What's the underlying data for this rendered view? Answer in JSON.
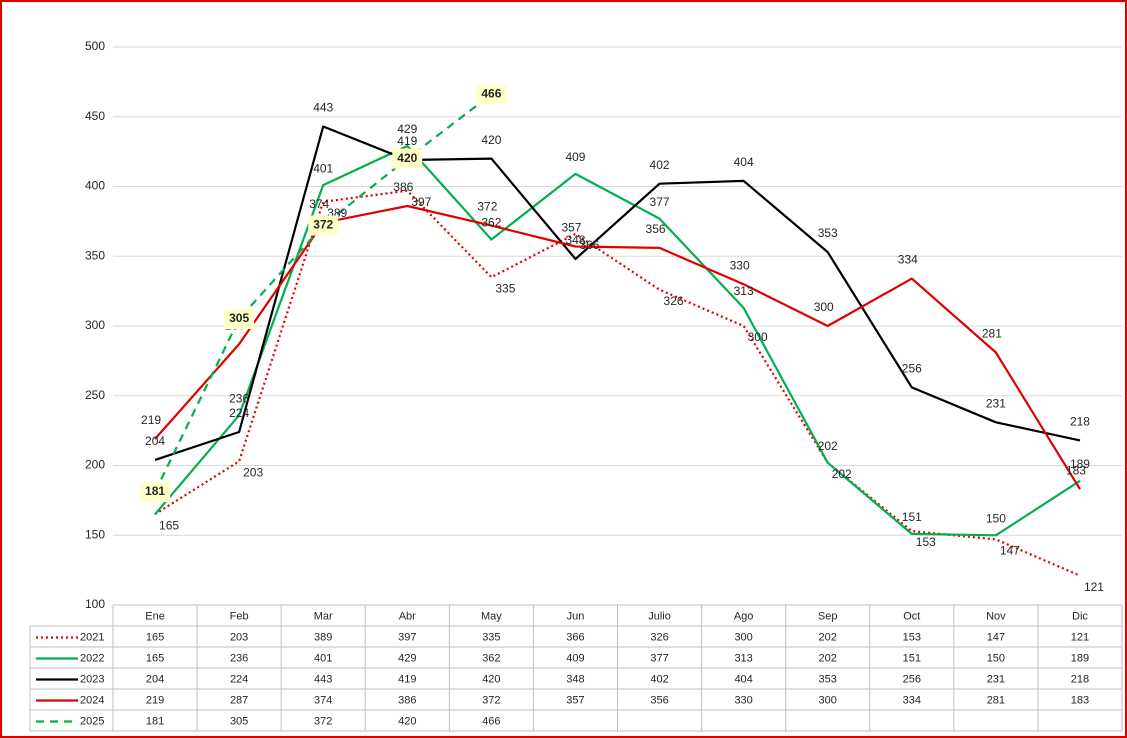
{
  "chart_data": {
    "type": "line",
    "categories": [
      "Ene",
      "Feb",
      "Mar",
      "Abr",
      "May",
      "Jun",
      "Julio",
      "Ago",
      "Sep",
      "Oct",
      "Nov",
      "Dic"
    ],
    "series": [
      {
        "name": "2021",
        "color": "#e00000",
        "dash": "dotted",
        "values": [
          165,
          203,
          389,
          397,
          335,
          366,
          326,
          300,
          202,
          153,
          147,
          121
        ]
      },
      {
        "name": "2022",
        "color": "#00b050",
        "dash": "solid",
        "values": [
          165,
          236,
          401,
          429,
          362,
          409,
          377,
          313,
          202,
          151,
          150,
          189
        ]
      },
      {
        "name": "2023",
        "color": "#000000",
        "dash": "solid",
        "values": [
          204,
          224,
          443,
          419,
          420,
          348,
          402,
          404,
          353,
          256,
          231,
          218
        ]
      },
      {
        "name": "2024",
        "color": "#e00000",
        "dash": "solid",
        "values": [
          219,
          287,
          374,
          386,
          372,
          357,
          356,
          330,
          300,
          334,
          281,
          183
        ]
      },
      {
        "name": "2025",
        "color": "#00b050",
        "dash": "dashed",
        "values": [
          181,
          305,
          372,
          420,
          466,
          null,
          null,
          null,
          null,
          null,
          null,
          null
        ]
      }
    ],
    "ylim": [
      100,
      500
    ],
    "yticks": [
      100,
      150,
      200,
      250,
      300,
      350,
      400,
      450,
      500
    ],
    "grid": true,
    "data_table": true
  }
}
